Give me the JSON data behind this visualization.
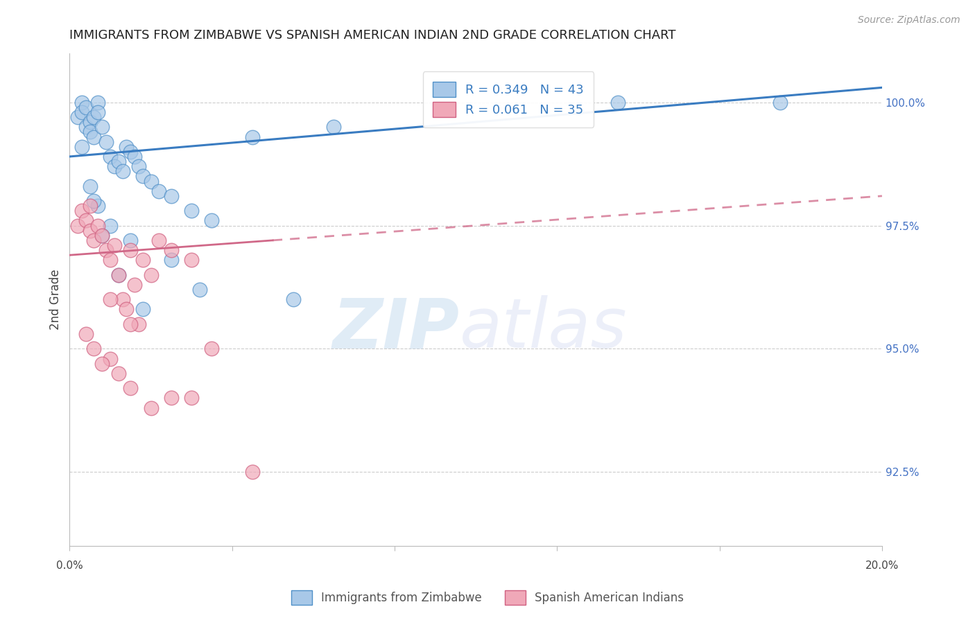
{
  "title": "IMMIGRANTS FROM ZIMBABWE VS SPANISH AMERICAN INDIAN 2ND GRADE CORRELATION CHART",
  "source": "Source: ZipAtlas.com",
  "ylabel": "2nd Grade",
  "blue_R": 0.349,
  "blue_N": 43,
  "pink_R": 0.061,
  "pink_N": 35,
  "blue_label": "Immigrants from Zimbabwe",
  "pink_label": "Spanish American Indians",
  "blue_color": "#A8C8E8",
  "pink_color": "#F0A8B8",
  "blue_edge_color": "#5090C8",
  "pink_edge_color": "#D06080",
  "blue_line_color": "#3A7CC1",
  "pink_line_color": "#D06888",
  "xmin": 0.0,
  "xmax": 20.0,
  "ymin": 91.0,
  "ymax": 101.0,
  "ytick_vals": [
    92.5,
    95.0,
    97.5,
    100.0
  ],
  "ytick_labels": [
    "92.5%",
    "95.0%",
    "97.5%",
    "100.0%"
  ],
  "blue_x": [
    0.2,
    0.3,
    0.3,
    0.4,
    0.4,
    0.5,
    0.5,
    0.6,
    0.6,
    0.7,
    0.7,
    0.8,
    0.9,
    1.0,
    1.1,
    1.2,
    1.3,
    1.4,
    1.5,
    1.6,
    1.7,
    1.8,
    2.0,
    2.2,
    2.5,
    3.0,
    3.5,
    0.3,
    0.5,
    0.7,
    1.0,
    1.5,
    2.5,
    4.5,
    6.5,
    17.5,
    13.5,
    0.6,
    0.8,
    1.2,
    1.8,
    3.2,
    5.5
  ],
  "blue_y": [
    99.7,
    100.0,
    99.8,
    99.9,
    99.5,
    99.6,
    99.4,
    99.7,
    99.3,
    100.0,
    99.8,
    99.5,
    99.2,
    98.9,
    98.7,
    98.8,
    98.6,
    99.1,
    99.0,
    98.9,
    98.7,
    98.5,
    98.4,
    98.2,
    98.1,
    97.8,
    97.6,
    99.1,
    98.3,
    97.9,
    97.5,
    97.2,
    96.8,
    99.3,
    99.5,
    100.0,
    100.0,
    98.0,
    97.3,
    96.5,
    95.8,
    96.2,
    96.0
  ],
  "pink_x": [
    0.2,
    0.3,
    0.4,
    0.5,
    0.5,
    0.6,
    0.7,
    0.8,
    0.9,
    1.0,
    1.1,
    1.2,
    1.3,
    1.4,
    1.5,
    1.6,
    1.7,
    1.8,
    2.0,
    2.2,
    2.5,
    3.0,
    3.5,
    1.0,
    1.2,
    1.5,
    2.0,
    3.0,
    0.4,
    0.6,
    0.8,
    1.0,
    1.5,
    2.5,
    4.5
  ],
  "pink_y": [
    97.5,
    97.8,
    97.6,
    97.4,
    97.9,
    97.2,
    97.5,
    97.3,
    97.0,
    96.8,
    97.1,
    96.5,
    96.0,
    95.8,
    97.0,
    96.3,
    95.5,
    96.8,
    96.5,
    97.2,
    97.0,
    96.8,
    95.0,
    94.8,
    94.5,
    94.2,
    93.8,
    94.0,
    95.3,
    95.0,
    94.7,
    96.0,
    95.5,
    94.0,
    92.5
  ],
  "blue_line_x0": 0.0,
  "blue_line_y0": 98.9,
  "blue_line_x1": 20.0,
  "blue_line_y1": 100.3,
  "pink_line_x0": 0.0,
  "pink_line_y0": 96.9,
  "pink_line_x1": 20.0,
  "pink_line_y1": 98.1,
  "pink_solid_xmax": 5.0
}
